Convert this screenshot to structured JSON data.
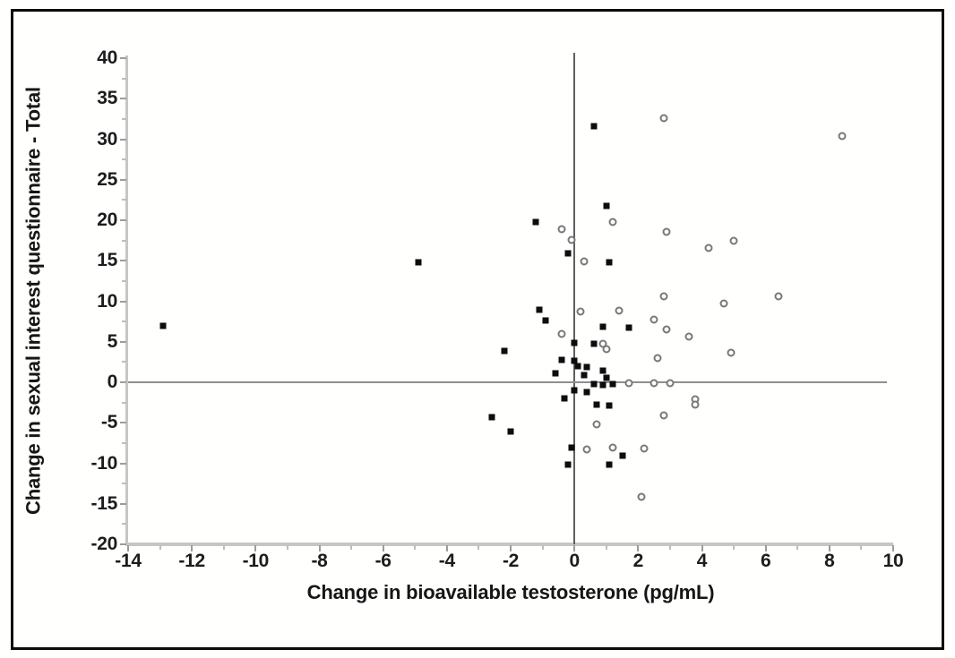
{
  "chart_data": {
    "type": "scatter",
    "title": "",
    "xlabel": "Change in bioavailable testosterone (pg/mL)",
    "ylabel": "Change in sexual interest questionnaire - Total",
    "xlim": [
      -14,
      10
    ],
    "ylim": [
      -20,
      40
    ],
    "x_tick_values": [
      -14,
      -12,
      -10,
      -8,
      -6,
      -4,
      -2,
      0,
      2,
      4,
      6,
      8,
      10
    ],
    "x_tick_labels": [
      "-14",
      "-12",
      "-10",
      "-8",
      "-6",
      "-4",
      "-2",
      "0",
      "2",
      "4",
      "6",
      "8",
      "10"
    ],
    "y_tick_values": [
      40,
      35,
      30,
      25,
      20,
      15,
      10,
      5,
      0,
      -5,
      -10,
      -15,
      -20
    ],
    "y_tick_labels": [
      "40",
      "35",
      "30",
      "25",
      "20",
      "15",
      "10",
      "5",
      "0",
      "-5",
      "-10",
      "-15",
      "-20"
    ],
    "x_minor_tick_step": 1,
    "y_minor_tick_step": 2.5,
    "grid": false,
    "legend": "none",
    "reference_lines": {
      "vertical_at_x": 0,
      "horizontal_at_y": 0
    },
    "series": [
      {
        "name": "filled-squares",
        "marker": "filled-square",
        "color": "#0d0d0d",
        "points": [
          [
            -12.9,
            7.0
          ],
          [
            -4.9,
            14.8
          ],
          [
            -2.6,
            -4.3
          ],
          [
            -2.2,
            3.9
          ],
          [
            -2.0,
            -6.1
          ],
          [
            -1.2,
            19.8
          ],
          [
            -1.1,
            8.9
          ],
          [
            -0.9,
            7.6
          ],
          [
            -0.2,
            15.9
          ],
          [
            0.6,
            31.6
          ],
          [
            1.0,
            21.8
          ],
          [
            1.1,
            14.8
          ],
          [
            0.9,
            6.9
          ],
          [
            1.7,
            6.7
          ],
          [
            0.0,
            4.9
          ],
          [
            0.6,
            4.8
          ],
          [
            -0.4,
            2.8
          ],
          [
            0.0,
            2.6
          ],
          [
            0.1,
            2.0
          ],
          [
            0.4,
            1.9
          ],
          [
            0.9,
            1.4
          ],
          [
            -0.6,
            1.1
          ],
          [
            0.3,
            0.9
          ],
          [
            1.0,
            0.5
          ],
          [
            0.6,
            -0.2
          ],
          [
            0.9,
            -0.3
          ],
          [
            1.2,
            -0.2
          ],
          [
            0.0,
            -1.0
          ],
          [
            0.4,
            -1.2
          ],
          [
            -0.3,
            -2.0
          ],
          [
            0.7,
            -2.8
          ],
          [
            1.1,
            -2.9
          ],
          [
            -0.1,
            -8.1
          ],
          [
            1.5,
            -9.1
          ],
          [
            -0.2,
            -10.2
          ],
          [
            1.1,
            -10.2
          ]
        ]
      },
      {
        "name": "open-circles",
        "marker": "open-circle",
        "color": "#787878",
        "points": [
          [
            8.4,
            30.4
          ],
          [
            2.8,
            32.6
          ],
          [
            2.9,
            18.6
          ],
          [
            4.2,
            16.6
          ],
          [
            5.0,
            17.5
          ],
          [
            1.2,
            19.8
          ],
          [
            -0.4,
            18.9
          ],
          [
            -0.1,
            17.6
          ],
          [
            0.3,
            14.9
          ],
          [
            2.8,
            10.6
          ],
          [
            4.7,
            9.7
          ],
          [
            6.4,
            10.6
          ],
          [
            0.2,
            8.7
          ],
          [
            1.4,
            8.8
          ],
          [
            2.5,
            7.7
          ],
          [
            2.9,
            6.5
          ],
          [
            3.6,
            5.6
          ],
          [
            2.6,
            3.0
          ],
          [
            4.9,
            3.6
          ],
          [
            1.0,
            4.1
          ],
          [
            0.9,
            4.7
          ],
          [
            -0.4,
            6.0
          ],
          [
            1.7,
            -0.1
          ],
          [
            2.5,
            -0.1
          ],
          [
            3.0,
            -0.1
          ],
          [
            3.8,
            -2.1
          ],
          [
            3.8,
            -2.8
          ],
          [
            2.8,
            -4.1
          ],
          [
            0.7,
            -5.2
          ],
          [
            0.4,
            -8.3
          ],
          [
            1.2,
            -8.1
          ],
          [
            2.2,
            -8.2
          ],
          [
            2.1,
            -14.1
          ]
        ]
      }
    ]
  },
  "colors": {
    "frame_border": "#0b0b0b",
    "axis_spine": "#c6c6c6",
    "major_tick": "#9c9c9c",
    "minor_tick": "#bdbdbd",
    "vertical_zero_line": "#5f5f5f",
    "horizontal_zero_line": "#8f8f8f",
    "filled_marker": "#0d0d0d",
    "open_marker_outline": "#787878",
    "text": "#1c1c1c",
    "background": "#fffffe"
  }
}
